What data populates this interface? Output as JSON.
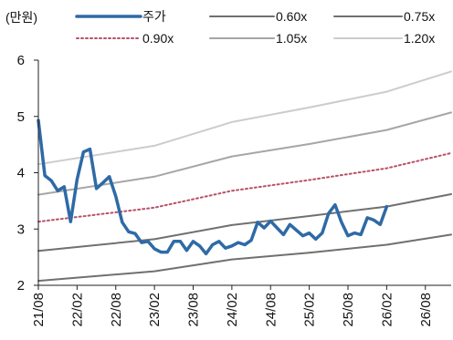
{
  "chart_data": {
    "type": "line",
    "unit_label": "(만원)",
    "y_ticks": [
      "2",
      "3",
      "4",
      "5",
      "6"
    ],
    "ylim": [
      2,
      6
    ],
    "x_ticks": [
      "21/08",
      "22/02",
      "22/08",
      "23/02",
      "23/08",
      "24/02",
      "24/08",
      "25/02",
      "25/08",
      "26/02",
      "26/08"
    ],
    "xlim": [
      "2021-08",
      "2026-12"
    ],
    "grid": false,
    "legend_position": "top",
    "series": [
      {
        "name": "주가",
        "color": "#2e6aa6",
        "style": "solid-thick",
        "points": [
          [
            "2021-08",
            4.93
          ],
          [
            "2021-09",
            3.95
          ],
          [
            "2021-10",
            3.86
          ],
          [
            "2021-11",
            3.68
          ],
          [
            "2021-12",
            3.75
          ],
          [
            "2022-01",
            3.13
          ],
          [
            "2022-02",
            3.88
          ],
          [
            "2022-03",
            4.37
          ],
          [
            "2022-04",
            4.42
          ],
          [
            "2022-05",
            3.72
          ],
          [
            "2022-06",
            3.82
          ],
          [
            "2022-07",
            3.93
          ],
          [
            "2022-08",
            3.58
          ],
          [
            "2022-09",
            3.12
          ],
          [
            "2022-10",
            2.95
          ],
          [
            "2022-11",
            2.92
          ],
          [
            "2022-12",
            2.76
          ],
          [
            "2023-01",
            2.78
          ],
          [
            "2023-02",
            2.65
          ],
          [
            "2023-03",
            2.59
          ],
          [
            "2023-04",
            2.59
          ],
          [
            "2023-05",
            2.78
          ],
          [
            "2023-06",
            2.78
          ],
          [
            "2023-07",
            2.62
          ],
          [
            "2023-08",
            2.78
          ],
          [
            "2023-09",
            2.7
          ],
          [
            "2023-10",
            2.56
          ],
          [
            "2023-11",
            2.72
          ],
          [
            "2023-12",
            2.78
          ],
          [
            "2024-01",
            2.66
          ],
          [
            "2024-02",
            2.7
          ],
          [
            "2024-03",
            2.76
          ],
          [
            "2024-04",
            2.72
          ],
          [
            "2024-05",
            2.8
          ],
          [
            "2024-06",
            3.12
          ],
          [
            "2024-07",
            3.02
          ],
          [
            "2024-08",
            3.14
          ],
          [
            "2024-09",
            3.02
          ],
          [
            "2024-10",
            2.9
          ],
          [
            "2024-11",
            3.08
          ],
          [
            "2024-12",
            2.98
          ],
          [
            "2025-01",
            2.88
          ],
          [
            "2025-02",
            2.93
          ],
          [
            "2025-03",
            2.82
          ],
          [
            "2025-04",
            2.93
          ],
          [
            "2025-05",
            3.28
          ],
          [
            "2025-06",
            3.43
          ],
          [
            "2025-07",
            3.12
          ],
          [
            "2025-08",
            2.88
          ],
          [
            "2025-09",
            2.93
          ],
          [
            "2025-10",
            2.9
          ],
          [
            "2025-11",
            3.2
          ],
          [
            "2025-12",
            3.16
          ],
          [
            "2026-01",
            3.08
          ],
          [
            "2026-02",
            3.4
          ]
        ]
      },
      {
        "name": "0.60x",
        "color": "#707070",
        "style": "solid",
        "points": [
          [
            "2021-08",
            2.08
          ],
          [
            "2023-02",
            2.25
          ],
          [
            "2024-02",
            2.46
          ],
          [
            "2025-02",
            2.58
          ],
          [
            "2026-02",
            2.72
          ],
          [
            "2026-12",
            2.9
          ]
        ]
      },
      {
        "name": "0.75x",
        "color": "#707070",
        "style": "solid",
        "points": [
          [
            "2021-08",
            2.61
          ],
          [
            "2023-02",
            2.82
          ],
          [
            "2024-02",
            3.07
          ],
          [
            "2025-02",
            3.23
          ],
          [
            "2026-02",
            3.4
          ],
          [
            "2026-12",
            3.62
          ]
        ]
      },
      {
        "name": "0.90x",
        "color": "#b85068",
        "style": "dotted",
        "points": [
          [
            "2021-08",
            3.13
          ],
          [
            "2023-02",
            3.38
          ],
          [
            "2024-02",
            3.68
          ],
          [
            "2025-02",
            3.87
          ],
          [
            "2026-02",
            4.08
          ],
          [
            "2026-12",
            4.35
          ]
        ]
      },
      {
        "name": "1.05x",
        "color": "#a6a6a6",
        "style": "solid",
        "points": [
          [
            "2021-08",
            3.61
          ],
          [
            "2023-02",
            3.93
          ],
          [
            "2024-02",
            4.29
          ],
          [
            "2025-02",
            4.51
          ],
          [
            "2026-02",
            4.76
          ],
          [
            "2026-12",
            5.07
          ]
        ]
      },
      {
        "name": "1.20x",
        "color": "#cccccc",
        "style": "solid",
        "points": [
          [
            "2021-08",
            4.15
          ],
          [
            "2023-02",
            4.48
          ],
          [
            "2024-02",
            4.9
          ],
          [
            "2025-02",
            5.16
          ],
          [
            "2026-02",
            5.44
          ],
          [
            "2026-12",
            5.8
          ]
        ]
      }
    ]
  }
}
